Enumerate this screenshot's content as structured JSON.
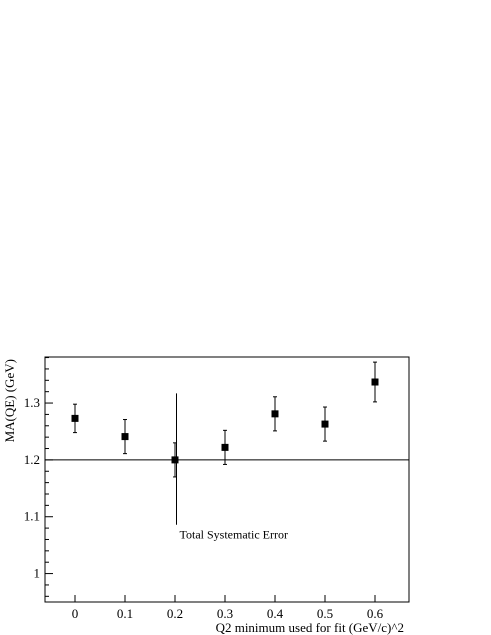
{
  "chart_data": {
    "type": "scatter",
    "xlabel": "Q2 minimum used for fit (GeV/c)^2",
    "ylabel": "MA(QE) (GeV)",
    "xlim": [
      -0.06,
      0.668
    ],
    "ylim": [
      0.95,
      1.381
    ],
    "xticks": [
      {
        "value": 0,
        "label": "0"
      },
      {
        "value": 0.1,
        "label": "0.1"
      },
      {
        "value": 0.2,
        "label": "0.2"
      },
      {
        "value": 0.3,
        "label": "0.3"
      },
      {
        "value": 0.4,
        "label": "0.4"
      },
      {
        "value": 0.5,
        "label": "0.5"
      },
      {
        "value": 0.6,
        "label": "0.6"
      }
    ],
    "yticks": [
      {
        "value": 1.0,
        "label": "1"
      },
      {
        "value": 1.1,
        "label": "1.1"
      },
      {
        "value": 1.2,
        "label": "1.2"
      },
      {
        "value": 1.3,
        "label": "1.3"
      }
    ],
    "series": [
      {
        "points": [
          {
            "x": 0.0,
            "y": 1.273,
            "err_low": 0.025,
            "err_high": 0.025
          },
          {
            "x": 0.1,
            "y": 1.241,
            "err_low": 0.03,
            "err_high": 0.03
          },
          {
            "x": 0.2,
            "y": 1.2,
            "err_low": 0.03,
            "err_high": 0.03
          },
          {
            "x": 0.3,
            "y": 1.222,
            "err_low": 0.03,
            "err_high": 0.03
          },
          {
            "x": 0.4,
            "y": 1.281,
            "err_low": 0.03,
            "err_high": 0.03
          },
          {
            "x": 0.5,
            "y": 1.263,
            "err_low": 0.03,
            "err_high": 0.03
          },
          {
            "x": 0.6,
            "y": 1.337,
            "err_low": 0.035,
            "err_high": 0.035
          }
        ]
      }
    ],
    "reference_line": {
      "y": 1.2
    },
    "systematic_error": {
      "x": 0.203,
      "y_low": 1.086,
      "y_high": 1.317,
      "label": "Total Systematic Error"
    },
    "grid": false,
    "legend": "none"
  }
}
